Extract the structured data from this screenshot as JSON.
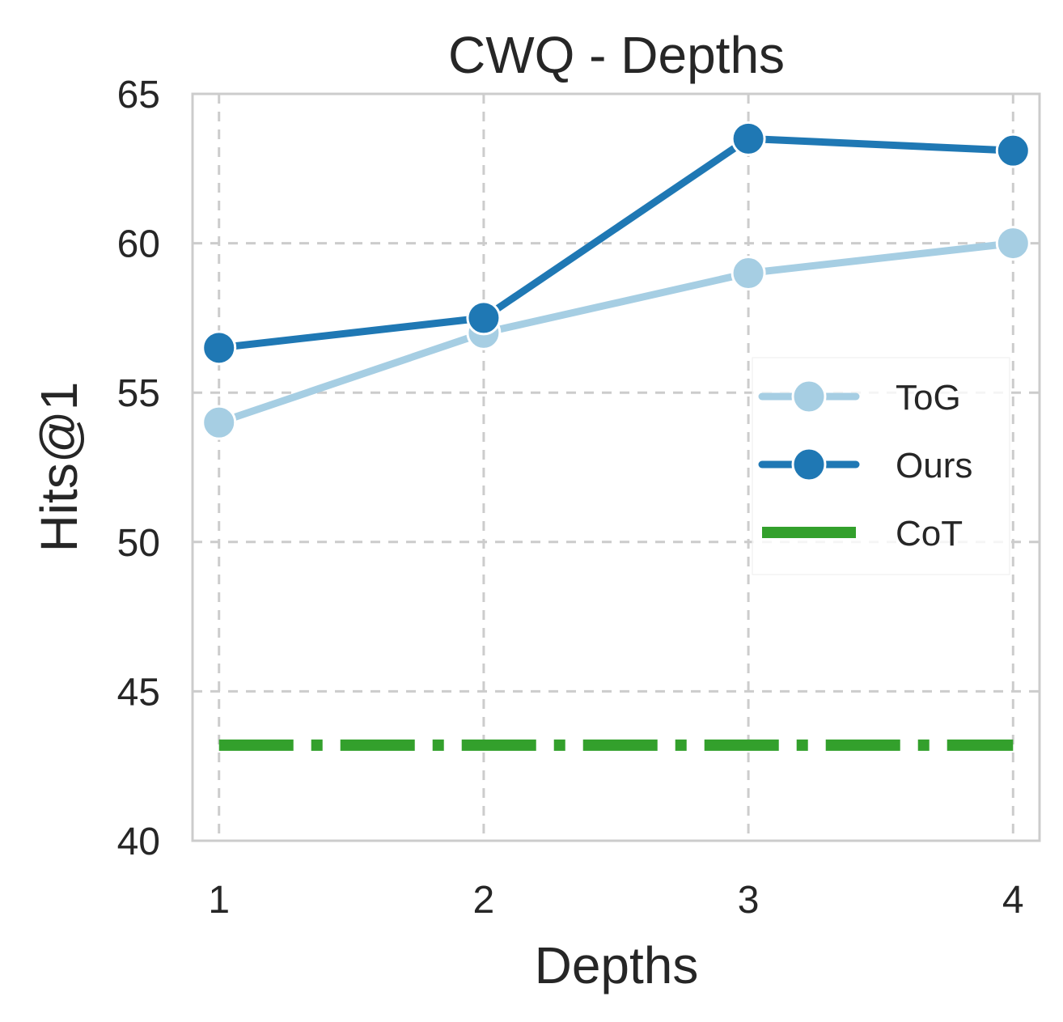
{
  "chart_data": {
    "type": "line",
    "title": "CWQ - Depths",
    "xlabel": "Depths",
    "ylabel": "Hits@1",
    "x": [
      1,
      2,
      3,
      4
    ],
    "xlim": [
      0.9,
      4.1
    ],
    "ylim": [
      40,
      65
    ],
    "xticks": [
      "1",
      "2",
      "3",
      "4"
    ],
    "yticks": [
      "40",
      "45",
      "50",
      "55",
      "60",
      "65"
    ],
    "grid": true,
    "legend_position": "center-right",
    "series": [
      {
        "name": "ToG",
        "values": [
          54.0,
          57.0,
          59.0,
          60.0
        ],
        "color": "#a6cee3",
        "style": "solid",
        "marker": "circle"
      },
      {
        "name": "Ours",
        "values": [
          56.5,
          57.5,
          63.5,
          63.1
        ],
        "color": "#1f78b4",
        "style": "solid",
        "marker": "circle"
      },
      {
        "name": "CoT",
        "values": [
          43.2,
          43.2,
          43.2,
          43.2
        ],
        "color": "#33a02c",
        "style": "dashdot",
        "marker": "none"
      }
    ]
  }
}
